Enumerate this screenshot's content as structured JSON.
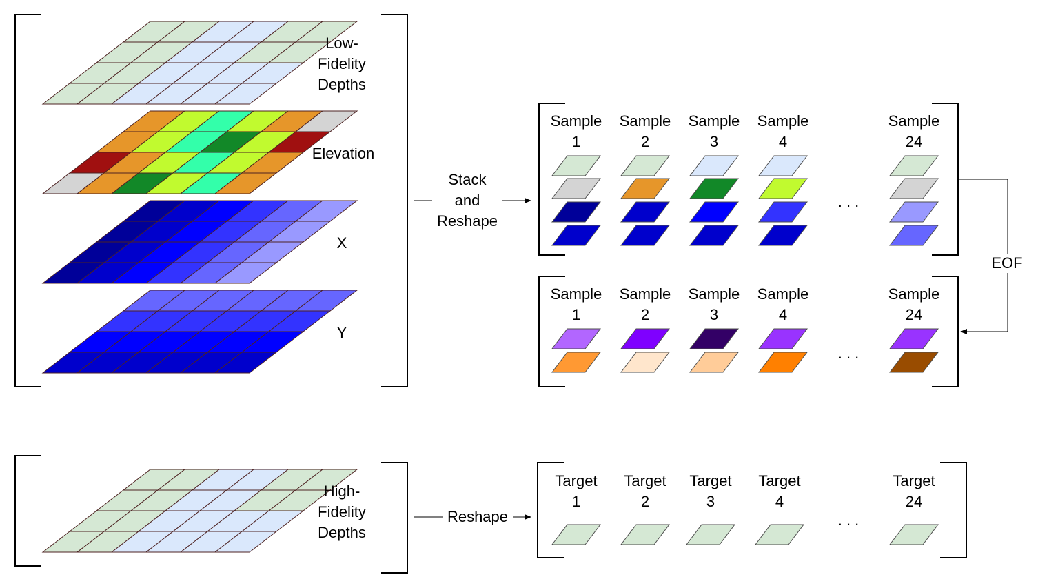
{
  "palette": {
    "lightgreen": "#d5e8d4",
    "lightblue": "#dae8fc",
    "orange": "#e6962a",
    "lime": "#c1fa2f",
    "aqua": "#33ffaa",
    "darkgreen": "#128828",
    "darkred": "#a01010",
    "gray": "#d4d4d4",
    "navy": "#000099",
    "b2": "#0000cc",
    "b3": "#0000ff",
    "b4": "#3333ff",
    "b5": "#6666ff",
    "b6": "#9999ff",
    "violet": "#b266ff",
    "purple": "#7f00ff",
    "indigo": "#330066",
    "purple2": "#9933ff",
    "orange2": "#ff9933",
    "peach": "#ffe6cc",
    "tan": "#ffcc99",
    "orange3": "#ff8000",
    "brown": "#994c00",
    "grid_stroke": "#4d2222",
    "line": "#000000"
  },
  "layers": [
    {
      "id": "low-fidelity-depths",
      "label_lines": [
        "Low-",
        "Fidelity",
        "Depths"
      ],
      "cells": [
        [
          "lightgreen",
          "lightgreen",
          "lightblue",
          "lightblue",
          "lightgreen",
          "lightgreen"
        ],
        [
          "lightgreen",
          "lightgreen",
          "lightblue",
          "lightblue",
          "lightgreen",
          "lightgreen"
        ],
        [
          "lightgreen",
          "lightgreen",
          "lightblue",
          "lightblue",
          "lightblue",
          "lightblue"
        ],
        [
          "lightgreen",
          "lightgreen",
          "lightblue",
          "lightblue",
          "lightblue",
          "lightblue"
        ]
      ]
    },
    {
      "id": "elevation",
      "label_lines": [
        "Elevation"
      ],
      "cells": [
        [
          "orange",
          "lime",
          "aqua",
          "lime",
          "orange",
          "gray"
        ],
        [
          "orange",
          "lime",
          "aqua",
          "darkgreen",
          "lime",
          "darkred"
        ],
        [
          "darkred",
          "orange",
          "lime",
          "aqua",
          "lime",
          "orange"
        ],
        [
          "gray",
          "orange",
          "darkgreen",
          "lime",
          "aqua",
          "orange"
        ]
      ]
    },
    {
      "id": "x",
      "label_lines": [
        "X"
      ],
      "cells": [
        [
          "navy",
          "b2",
          "b3",
          "b4",
          "b5",
          "b6"
        ],
        [
          "navy",
          "b2",
          "b3",
          "b4",
          "b5",
          "b6"
        ],
        [
          "navy",
          "b2",
          "b3",
          "b4",
          "b5",
          "b6"
        ],
        [
          "navy",
          "b2",
          "b3",
          "b4",
          "b5",
          "b6"
        ]
      ]
    },
    {
      "id": "y",
      "label_lines": [
        "Y"
      ],
      "cells": [
        [
          "b5",
          "b5",
          "b5",
          "b5",
          "b5",
          "b5"
        ],
        [
          "b4",
          "b4",
          "b4",
          "b4",
          "b4",
          "b4"
        ],
        [
          "b3",
          "b3",
          "b3",
          "b3",
          "b3",
          "b3"
        ],
        [
          "b2",
          "b2",
          "b2",
          "b2",
          "b2",
          "b2"
        ]
      ]
    }
  ],
  "high_fidelity": {
    "id": "high-fidelity-depths",
    "label_lines": [
      "High-",
      "Fidelity",
      "Depths"
    ],
    "cells": [
      [
        "lightgreen",
        "lightgreen",
        "lightblue",
        "lightblue",
        "lightgreen",
        "lightgreen"
      ],
      [
        "lightgreen",
        "lightgreen",
        "lightblue",
        "lightblue",
        "lightgreen",
        "lightgreen"
      ],
      [
        "lightgreen",
        "lightgreen",
        "lightblue",
        "lightblue",
        "lightblue",
        "lightblue"
      ],
      [
        "lightgreen",
        "lightgreen",
        "lightblue",
        "lightblue",
        "lightblue",
        "lightblue"
      ]
    ]
  },
  "arrows": {
    "stack_label_lines": [
      "Stack",
      "and",
      "Reshape"
    ],
    "reshape_label": "Reshape",
    "eof_label": "EOF"
  },
  "sample_groups": [
    {
      "id": "input-samples",
      "columns": [
        {
          "label_lines": [
            "Sample",
            "1"
          ],
          "tiles": [
            "lightgreen",
            "gray",
            "navy",
            "b2"
          ]
        },
        {
          "label_lines": [
            "Sample",
            "2"
          ],
          "tiles": [
            "lightgreen",
            "orange",
            "b2",
            "b2"
          ]
        },
        {
          "label_lines": [
            "Sample",
            "3"
          ],
          "tiles": [
            "lightblue",
            "darkgreen",
            "b3",
            "b2"
          ]
        },
        {
          "label_lines": [
            "Sample",
            "4"
          ],
          "tiles": [
            "lightblue",
            "lime",
            "b4",
            "b2"
          ]
        },
        {
          "label_lines": [
            "Sample",
            "24"
          ],
          "tiles": [
            "lightgreen",
            "gray",
            "b6",
            "b5"
          ]
        }
      ],
      "ellipsis": ". . ."
    },
    {
      "id": "eof-samples",
      "columns": [
        {
          "label_lines": [
            "Sample",
            "1"
          ],
          "tiles": [
            "violet",
            "orange2"
          ]
        },
        {
          "label_lines": [
            "Sample",
            "2"
          ],
          "tiles": [
            "purple",
            "peach"
          ]
        },
        {
          "label_lines": [
            "Sample",
            "3"
          ],
          "tiles": [
            "indigo",
            "tan"
          ]
        },
        {
          "label_lines": [
            "Sample",
            "4"
          ],
          "tiles": [
            "purple2",
            "orange3"
          ]
        },
        {
          "label_lines": [
            "Sample",
            "24"
          ],
          "tiles": [
            "purple2",
            "brown"
          ]
        }
      ],
      "ellipsis": ". . ."
    },
    {
      "id": "targets",
      "columns": [
        {
          "label_lines": [
            "Target",
            "1"
          ],
          "tiles": [
            "lightgreen"
          ]
        },
        {
          "label_lines": [
            "Target",
            "2"
          ],
          "tiles": [
            "lightgreen"
          ]
        },
        {
          "label_lines": [
            "Target",
            "3"
          ],
          "tiles": [
            "lightgreen"
          ]
        },
        {
          "label_lines": [
            "Target",
            "4"
          ],
          "tiles": [
            "lightgreen"
          ]
        },
        {
          "label_lines": [
            "Target",
            "24"
          ],
          "tiles": [
            "lightgreen"
          ]
        }
      ],
      "ellipsis": ". . ."
    }
  ]
}
